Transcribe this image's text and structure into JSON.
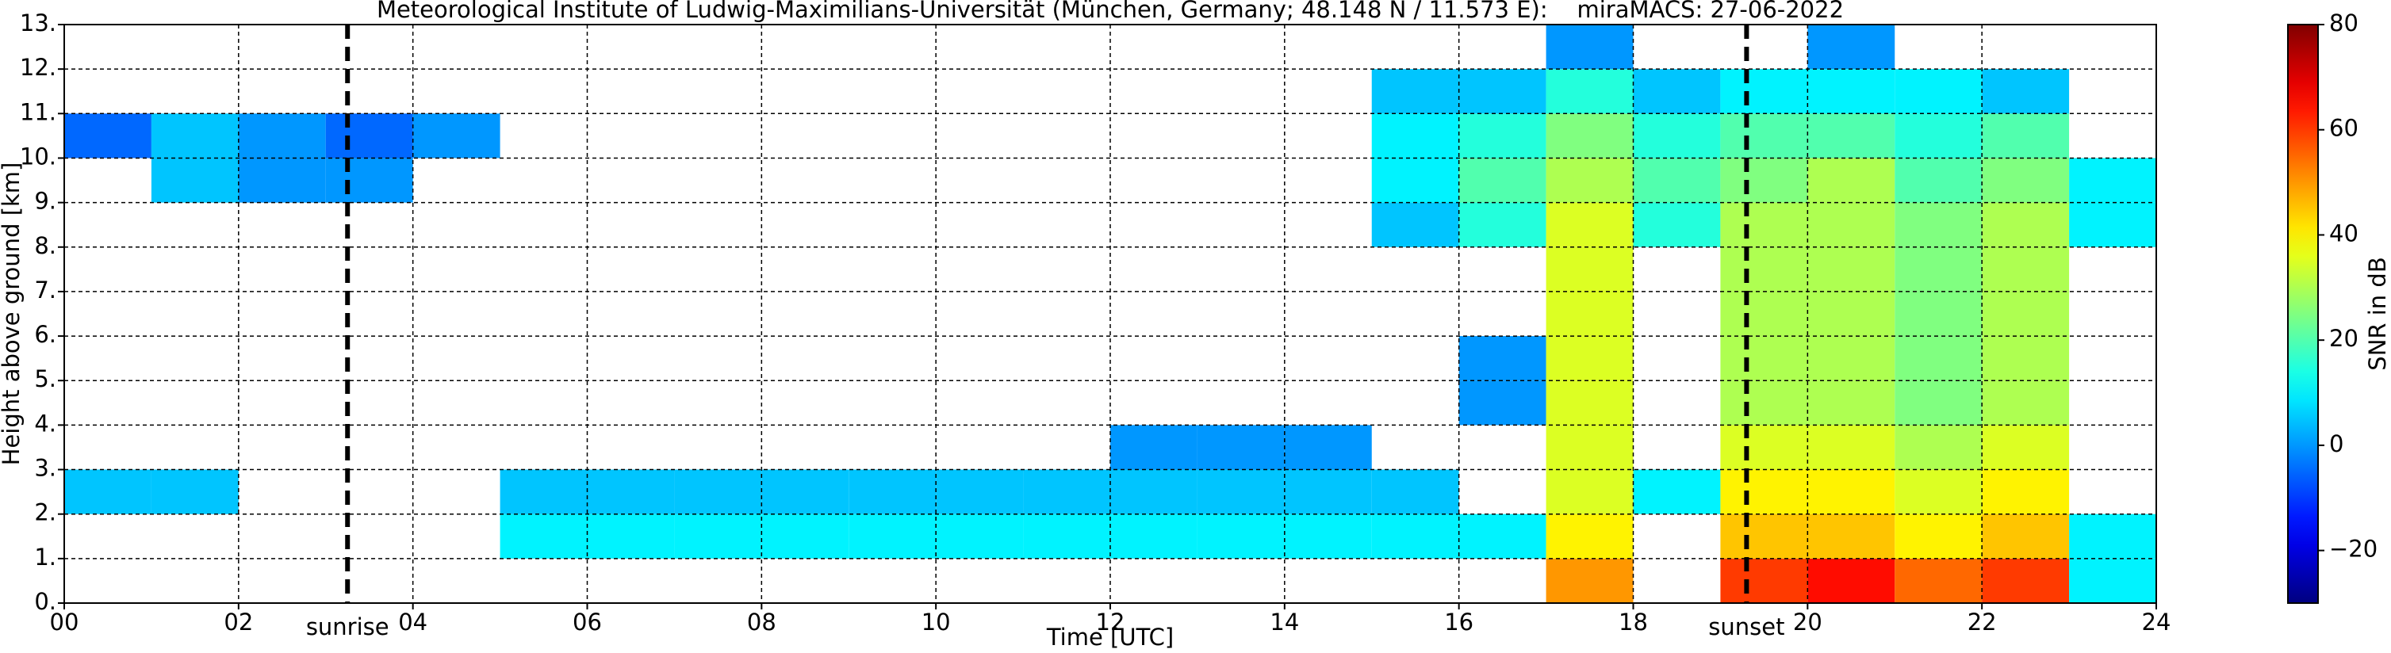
{
  "chart_data": {
    "type": "heatmap",
    "title": "Meteorological Institute of Ludwig-Maximilians-Universität (München, Germany; 48.148 N / 11.573 E):    miraMACS: 27-06-2022",
    "xlabel": "Time [UTC]",
    "ylabel": "Height above ground [km]",
    "xlim": [
      0,
      24
    ],
    "ylim": [
      0,
      13
    ],
    "xticks": [
      {
        "value": 0,
        "label": "00"
      },
      {
        "value": 2,
        "label": "02"
      },
      {
        "value": 4,
        "label": "04"
      },
      {
        "value": 6,
        "label": "06"
      },
      {
        "value": 8,
        "label": "08"
      },
      {
        "value": 10,
        "label": "10"
      },
      {
        "value": 12,
        "label": "12"
      },
      {
        "value": 14,
        "label": "14"
      },
      {
        "value": 16,
        "label": "16"
      },
      {
        "value": 18,
        "label": "18"
      },
      {
        "value": 20,
        "label": "20"
      },
      {
        "value": 22,
        "label": "22"
      },
      {
        "value": 24,
        "label": "24"
      }
    ],
    "yticks": [
      {
        "value": 0,
        "label": "0."
      },
      {
        "value": 1,
        "label": "1."
      },
      {
        "value": 2,
        "label": "2."
      },
      {
        "value": 3,
        "label": "3."
      },
      {
        "value": 4,
        "label": "4."
      },
      {
        "value": 5,
        "label": "5."
      },
      {
        "value": 6,
        "label": "6."
      },
      {
        "value": 7,
        "label": "7."
      },
      {
        "value": 8,
        "label": "8."
      },
      {
        "value": 9,
        "label": "9."
      },
      {
        "value": 10,
        "label": "10."
      },
      {
        "value": 11,
        "label": "11."
      },
      {
        "value": 12,
        "label": "12."
      },
      {
        "value": 13,
        "label": "13."
      }
    ],
    "grid": true,
    "x_edges": [
      0,
      1,
      2,
      3,
      4,
      5,
      6,
      7,
      8,
      9,
      10,
      11,
      12,
      13,
      14,
      15,
      16,
      17,
      18,
      19,
      20,
      21,
      22,
      23,
      24
    ],
    "y_edges": [
      0,
      1,
      2,
      3,
      4,
      5,
      6,
      7,
      8,
      9,
      10,
      11,
      12,
      13
    ],
    "z": [
      [
        null,
        null,
        null,
        null,
        null,
        null,
        null,
        null,
        null,
        null,
        null,
        null,
        null,
        null,
        null,
        null,
        null,
        50,
        null,
        60,
        65,
        55,
        60,
        10
      ],
      [
        null,
        null,
        null,
        null,
        null,
        10,
        10,
        10,
        10,
        10,
        10,
        10,
        10,
        10,
        10,
        10,
        10,
        40,
        null,
        45,
        45,
        40,
        45,
        10
      ],
      [
        5,
        5,
        null,
        null,
        null,
        5,
        5,
        5,
        5,
        5,
        5,
        5,
        5,
        5,
        5,
        5,
        null,
        35,
        10,
        40,
        40,
        35,
        40,
        null
      ],
      [
        null,
        null,
        null,
        null,
        null,
        null,
        null,
        null,
        null,
        null,
        null,
        null,
        0,
        0,
        0,
        null,
        null,
        35,
        null,
        35,
        35,
        30,
        35,
        null
      ],
      [
        null,
        null,
        null,
        null,
        null,
        null,
        null,
        null,
        null,
        null,
        null,
        null,
        null,
        null,
        null,
        null,
        0,
        35,
        null,
        30,
        30,
        25,
        30,
        null
      ],
      [
        null,
        null,
        null,
        null,
        null,
        null,
        null,
        null,
        null,
        null,
        null,
        null,
        null,
        null,
        null,
        null,
        0,
        35,
        null,
        30,
        30,
        25,
        30,
        null
      ],
      [
        null,
        null,
        null,
        null,
        null,
        null,
        null,
        null,
        null,
        null,
        null,
        null,
        null,
        null,
        null,
        null,
        null,
        35,
        null,
        30,
        30,
        25,
        30,
        null
      ],
      [
        null,
        null,
        null,
        null,
        null,
        null,
        null,
        null,
        null,
        null,
        null,
        null,
        null,
        null,
        null,
        null,
        null,
        35,
        null,
        30,
        30,
        25,
        30,
        null
      ],
      [
        null,
        null,
        null,
        null,
        null,
        null,
        null,
        null,
        null,
        null,
        null,
        null,
        null,
        null,
        null,
        5,
        15,
        35,
        15,
        30,
        30,
        25,
        30,
        10
      ],
      [
        null,
        5,
        0,
        0,
        null,
        null,
        null,
        null,
        null,
        null,
        null,
        null,
        null,
        null,
        null,
        10,
        20,
        30,
        20,
        25,
        30,
        20,
        25,
        10
      ],
      [
        -5,
        5,
        0,
        -5,
        0,
        null,
        null,
        null,
        null,
        null,
        null,
        null,
        null,
        null,
        null,
        10,
        15,
        25,
        15,
        20,
        20,
        15,
        20,
        null
      ],
      [
        null,
        null,
        null,
        null,
        null,
        null,
        null,
        null,
        null,
        null,
        null,
        null,
        null,
        null,
        null,
        5,
        5,
        15,
        5,
        10,
        10,
        10,
        5,
        null
      ],
      [
        null,
        null,
        null,
        null,
        null,
        null,
        null,
        null,
        null,
        null,
        null,
        null,
        null,
        null,
        null,
        null,
        null,
        0,
        null,
        null,
        0,
        null,
        null,
        null
      ]
    ],
    "colormap": "jet",
    "clim": [
      -30,
      80
    ],
    "cticks": [
      {
        "value": -20,
        "label": "−20"
      },
      0,
      20,
      40,
      60,
      80
    ],
    "colorbar_label": "SNR in dB",
    "annotations": [
      {
        "text": "sunrise",
        "x": 3.25
      },
      {
        "text": "sunset",
        "x": 19.3
      }
    ]
  }
}
